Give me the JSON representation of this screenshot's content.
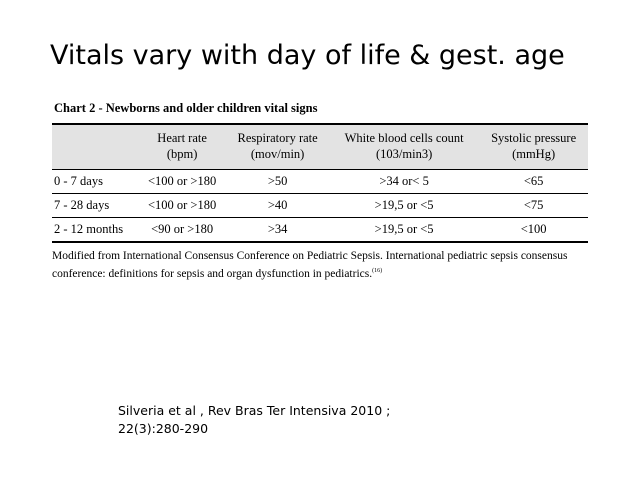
{
  "slide": {
    "title": "Vitals vary with day of life & gest. age"
  },
  "chart": {
    "caption": "Chart 2 - Newborns and older children vital signs",
    "columns": [
      {
        "line1": "Heart rate",
        "line2": "(bpm)"
      },
      {
        "line1": "Respiratory rate",
        "line2": "(mov/min)"
      },
      {
        "line1": "White blood cells count",
        "line2": "(103/min3)"
      },
      {
        "line1": "Systolic pressure",
        "line2": "(mmHg)"
      }
    ],
    "rows": [
      {
        "age": "0 - 7 days",
        "heart_rate": "<100 or >180",
        "respiratory_rate": ">50",
        "wbc": ">34 or< 5",
        "systolic": "<65"
      },
      {
        "age": "7 - 28 days",
        "heart_rate": "<100 or >180",
        "respiratory_rate": ">40",
        "wbc": ">19,5 or <5",
        "systolic": "<75"
      },
      {
        "age": "2 - 12 months",
        "heart_rate": "<90 or >180",
        "respiratory_rate": ">34",
        "wbc": ">19,5 or <5",
        "systolic": "<100"
      }
    ],
    "footnote": {
      "text": "Modified from International Consensus Conference on Pediatric Sepsis. International pediatric sepsis consensus conference: definitions for sepsis and organ dysfunction in pediatrics.",
      "ref": "(16)"
    }
  },
  "citation": {
    "line1": "Silveria et al , Rev Bras Ter Intensiva 2010 ;",
    "line2": "22(3):280-290"
  }
}
